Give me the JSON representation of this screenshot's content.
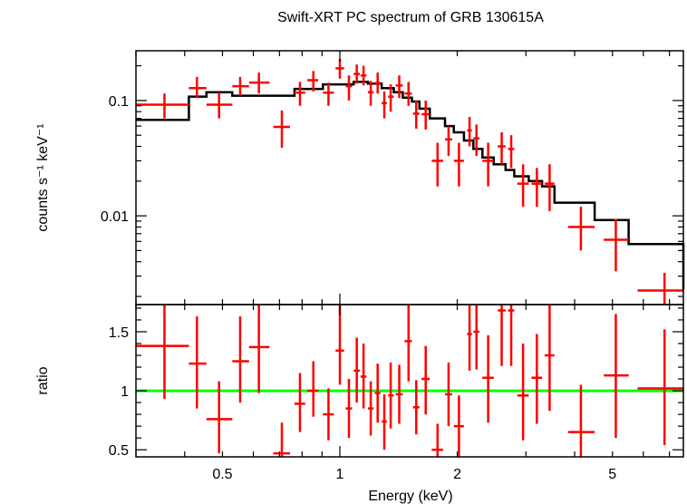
{
  "chart_data": [
    {
      "type": "scatter",
      "panel": "spectrum",
      "title": "Swift-XRT PC spectrum of GRB 130615A",
      "xlabel": "",
      "ylabel": "counts s⁻¹ keV⁻¹",
      "xscale": "log",
      "yscale": "log",
      "xlim": [
        0.3,
        7.6
      ],
      "ylim": [
        0.0017,
        0.27
      ],
      "y_ticks": [
        0.1,
        0.01
      ],
      "y_tick_labels": [
        "0.1",
        "0.01"
      ],
      "colors": {
        "data": "#ff0000",
        "model": "#000000"
      },
      "series": [
        {
          "kind": "data",
          "points": [
            {
              "x": 0.355,
              "xlo": 0.3,
              "xhi": 0.41,
              "y": 0.092,
              "ylo": 0.07,
              "yhi": 0.115
            },
            {
              "x": 0.43,
              "xlo": 0.41,
              "xhi": 0.455,
              "y": 0.128,
              "ylo": 0.105,
              "yhi": 0.16
            },
            {
              "x": 0.49,
              "xlo": 0.455,
              "xhi": 0.53,
              "y": 0.092,
              "ylo": 0.07,
              "yhi": 0.117
            },
            {
              "x": 0.555,
              "xlo": 0.53,
              "xhi": 0.585,
              "y": 0.133,
              "ylo": 0.11,
              "yhi": 0.16
            },
            {
              "x": 0.62,
              "xlo": 0.585,
              "xhi": 0.66,
              "y": 0.143,
              "ylo": 0.115,
              "yhi": 0.175
            },
            {
              "x": 0.71,
              "xlo": 0.675,
              "xhi": 0.745,
              "y": 0.059,
              "ylo": 0.039,
              "yhi": 0.082
            },
            {
              "x": 0.79,
              "xlo": 0.765,
              "xhi": 0.815,
              "y": 0.117,
              "ylo": 0.09,
              "yhi": 0.145
            },
            {
              "x": 0.855,
              "xlo": 0.825,
              "xhi": 0.88,
              "y": 0.15,
              "ylo": 0.12,
              "yhi": 0.18
            },
            {
              "x": 0.935,
              "xlo": 0.905,
              "xhi": 0.965,
              "y": 0.117,
              "ylo": 0.09,
              "yhi": 0.143
            },
            {
              "x": 1.0,
              "xlo": 0.975,
              "xhi": 1.025,
              "y": 0.19,
              "ylo": 0.155,
              "yhi": 0.23
            },
            {
              "x": 1.055,
              "xlo": 1.035,
              "xhi": 1.075,
              "y": 0.133,
              "ylo": 0.1,
              "yhi": 0.165
            },
            {
              "x": 1.105,
              "xlo": 1.085,
              "xhi": 1.125,
              "y": 0.17,
              "ylo": 0.14,
              "yhi": 0.205
            },
            {
              "x": 1.15,
              "xlo": 1.13,
              "xhi": 1.17,
              "y": 0.165,
              "ylo": 0.135,
              "yhi": 0.2
            },
            {
              "x": 1.2,
              "xlo": 1.18,
              "xhi": 1.22,
              "y": 0.118,
              "ylo": 0.09,
              "yhi": 0.148
            },
            {
              "x": 1.25,
              "xlo": 1.23,
              "xhi": 1.27,
              "y": 0.142,
              "ylo": 0.115,
              "yhi": 0.175
            },
            {
              "x": 1.3,
              "xlo": 1.28,
              "xhi": 1.32,
              "y": 0.095,
              "ylo": 0.07,
              "yhi": 0.12
            },
            {
              "x": 1.35,
              "xlo": 1.33,
              "xhi": 1.375,
              "y": 0.108,
              "ylo": 0.08,
              "yhi": 0.138
            },
            {
              "x": 1.42,
              "xlo": 1.39,
              "xhi": 1.45,
              "y": 0.135,
              "ylo": 0.105,
              "yhi": 0.165
            },
            {
              "x": 1.5,
              "xlo": 1.465,
              "xhi": 1.53,
              "y": 0.115,
              "ylo": 0.09,
              "yhi": 0.145
            },
            {
              "x": 1.57,
              "xlo": 1.54,
              "xhi": 1.6,
              "y": 0.077,
              "ylo": 0.057,
              "yhi": 0.1
            },
            {
              "x": 1.66,
              "xlo": 1.62,
              "xhi": 1.7,
              "y": 0.076,
              "ylo": 0.056,
              "yhi": 0.1
            },
            {
              "x": 1.78,
              "xlo": 1.72,
              "xhi": 1.84,
              "y": 0.03,
              "ylo": 0.018,
              "yhi": 0.043
            },
            {
              "x": 1.9,
              "xlo": 1.86,
              "xhi": 1.94,
              "y": 0.046,
              "ylo": 0.033,
              "yhi": 0.06
            },
            {
              "x": 2.02,
              "xlo": 1.96,
              "xhi": 2.08,
              "y": 0.03,
              "ylo": 0.018,
              "yhi": 0.043
            },
            {
              "x": 2.15,
              "xlo": 2.12,
              "xhi": 2.18,
              "y": 0.055,
              "ylo": 0.04,
              "yhi": 0.072
            },
            {
              "x": 2.24,
              "xlo": 2.2,
              "xhi": 2.28,
              "y": 0.047,
              "ylo": 0.033,
              "yhi": 0.062
            },
            {
              "x": 2.4,
              "xlo": 2.32,
              "xhi": 2.48,
              "y": 0.03,
              "ylo": 0.018,
              "yhi": 0.043
            },
            {
              "x": 2.6,
              "xlo": 2.54,
              "xhi": 2.66,
              "y": 0.04,
              "ylo": 0.028,
              "yhi": 0.053
            },
            {
              "x": 2.75,
              "xlo": 2.7,
              "xhi": 2.8,
              "y": 0.038,
              "ylo": 0.026,
              "yhi": 0.05
            },
            {
              "x": 2.95,
              "xlo": 2.85,
              "xhi": 3.05,
              "y": 0.019,
              "ylo": 0.012,
              "yhi": 0.028
            },
            {
              "x": 3.2,
              "xlo": 3.1,
              "xhi": 3.3,
              "y": 0.019,
              "ylo": 0.012,
              "yhi": 0.026
            },
            {
              "x": 3.45,
              "xlo": 3.35,
              "xhi": 3.55,
              "y": 0.019,
              "ylo": 0.011,
              "yhi": 0.028
            },
            {
              "x": 4.15,
              "xlo": 3.85,
              "xhi": 4.5,
              "y": 0.008,
              "ylo": 0.005,
              "yhi": 0.012
            },
            {
              "x": 5.1,
              "xlo": 4.75,
              "xhi": 5.5,
              "y": 0.0062,
              "ylo": 0.0033,
              "yhi": 0.0094
            },
            {
              "x": 6.8,
              "xlo": 5.8,
              "xhi": 7.6,
              "y": 0.00225,
              "ylo": 0.0017,
              "yhi": 0.0032
            }
          ]
        },
        {
          "kind": "model",
          "step_edges": [
            0.3,
            0.41,
            0.455,
            0.53,
            0.66,
            0.765,
            0.905,
            1.085,
            1.18,
            1.28,
            1.375,
            1.45,
            1.53,
            1.6,
            1.7,
            1.86,
            1.96,
            2.08,
            2.2,
            2.32,
            2.48,
            2.66,
            2.8,
            3.05,
            3.3,
            3.55,
            4.5,
            5.5,
            7.6
          ],
          "step_values": [
            0.068,
            0.108,
            0.118,
            0.11,
            0.11,
            0.126,
            0.138,
            0.145,
            0.14,
            0.128,
            0.118,
            0.106,
            0.098,
            0.085,
            0.07,
            0.06,
            0.053,
            0.045,
            0.038,
            0.032,
            0.028,
            0.025,
            0.022,
            0.02,
            0.018,
            0.013,
            0.0092,
            0.0057,
            0.0023
          ]
        }
      ]
    },
    {
      "type": "scatter",
      "panel": "ratio",
      "title": "",
      "xlabel": "Energy (keV)",
      "ylabel": "ratio",
      "xscale": "log",
      "yscale": "linear",
      "xlim": [
        0.3,
        7.6
      ],
      "ylim": [
        0.44,
        1.73
      ],
      "x_ticks": [
        0.5,
        1,
        2,
        5
      ],
      "x_tick_labels": [
        "0.5",
        "1",
        "2",
        "5"
      ],
      "y_ticks": [
        0.5,
        1,
        1.5
      ],
      "y_tick_labels": [
        "0.5",
        "1",
        "1.5"
      ],
      "reference_line": 1,
      "colors": {
        "data": "#ff0000",
        "reference": "#00ff00"
      },
      "series": [
        {
          "kind": "ratio",
          "points": [
            {
              "x": 0.355,
              "xlo": 0.3,
              "xhi": 0.41,
              "y": 1.38,
              "ylo": 0.93,
              "yhi": 1.73
            },
            {
              "x": 0.43,
              "xlo": 0.41,
              "xhi": 0.455,
              "y": 1.23,
              "ylo": 0.85,
              "yhi": 1.63
            },
            {
              "x": 0.49,
              "xlo": 0.455,
              "xhi": 0.53,
              "y": 0.76,
              "ylo": 0.47,
              "yhi": 1.08
            },
            {
              "x": 0.555,
              "xlo": 0.53,
              "xhi": 0.585,
              "y": 1.25,
              "ylo": 0.9,
              "yhi": 1.63
            },
            {
              "x": 0.62,
              "xlo": 0.585,
              "xhi": 0.66,
              "y": 1.37,
              "ylo": 0.98,
              "yhi": 1.73
            },
            {
              "x": 0.71,
              "xlo": 0.675,
              "xhi": 0.745,
              "y": 0.47,
              "ylo": 0.44,
              "yhi": 0.73
            },
            {
              "x": 0.79,
              "xlo": 0.765,
              "xhi": 0.815,
              "y": 0.89,
              "ylo": 0.65,
              "yhi": 1.15
            },
            {
              "x": 0.855,
              "xlo": 0.825,
              "xhi": 0.88,
              "y": 1.0,
              "ylo": 0.78,
              "yhi": 1.25
            },
            {
              "x": 0.935,
              "xlo": 0.905,
              "xhi": 0.965,
              "y": 0.8,
              "ylo": 0.58,
              "yhi": 1.02
            },
            {
              "x": 1.0,
              "xlo": 0.975,
              "xhi": 1.025,
              "y": 1.34,
              "ylo": 1.05,
              "yhi": 1.73
            },
            {
              "x": 1.055,
              "xlo": 1.035,
              "xhi": 1.075,
              "y": 0.85,
              "ylo": 0.6,
              "yhi": 1.1
            },
            {
              "x": 1.105,
              "xlo": 1.085,
              "xhi": 1.125,
              "y": 1.17,
              "ylo": 0.9,
              "yhi": 1.45
            },
            {
              "x": 1.15,
              "xlo": 1.13,
              "xhi": 1.17,
              "y": 1.12,
              "ylo": 0.85,
              "yhi": 1.4
            },
            {
              "x": 1.2,
              "xlo": 1.18,
              "xhi": 1.22,
              "y": 0.85,
              "ylo": 0.62,
              "yhi": 1.08
            },
            {
              "x": 1.25,
              "xlo": 1.23,
              "xhi": 1.27,
              "y": 0.98,
              "ylo": 0.73,
              "yhi": 1.23
            },
            {
              "x": 1.3,
              "xlo": 1.28,
              "xhi": 1.32,
              "y": 0.74,
              "ylo": 0.5,
              "yhi": 0.97
            },
            {
              "x": 1.35,
              "xlo": 1.33,
              "xhi": 1.375,
              "y": 0.96,
              "ylo": 0.68,
              "yhi": 1.24
            },
            {
              "x": 1.42,
              "xlo": 1.39,
              "xhi": 1.45,
              "y": 0.97,
              "ylo": 0.72,
              "yhi": 1.22
            },
            {
              "x": 1.5,
              "xlo": 1.465,
              "xhi": 1.53,
              "y": 1.42,
              "ylo": 1.08,
              "yhi": 1.73
            },
            {
              "x": 1.57,
              "xlo": 1.54,
              "xhi": 1.6,
              "y": 0.86,
              "ylo": 0.63,
              "yhi": 1.09
            },
            {
              "x": 1.66,
              "xlo": 1.62,
              "xhi": 1.7,
              "y": 1.1,
              "ylo": 0.8,
              "yhi": 1.38
            },
            {
              "x": 1.78,
              "xlo": 1.72,
              "xhi": 1.84,
              "y": 0.5,
              "ylo": 0.44,
              "yhi": 0.72
            },
            {
              "x": 1.9,
              "xlo": 1.86,
              "xhi": 1.94,
              "y": 0.97,
              "ylo": 0.7,
              "yhi": 1.24
            },
            {
              "x": 2.02,
              "xlo": 1.96,
              "xhi": 2.08,
              "y": 0.7,
              "ylo": 0.44,
              "yhi": 0.96
            },
            {
              "x": 2.15,
              "xlo": 2.12,
              "xhi": 2.18,
              "y": 1.48,
              "ylo": 1.17,
              "yhi": 1.73
            },
            {
              "x": 2.24,
              "xlo": 2.2,
              "xhi": 2.28,
              "y": 1.5,
              "ylo": 1.18,
              "yhi": 1.73
            },
            {
              "x": 2.4,
              "xlo": 2.32,
              "xhi": 2.48,
              "y": 1.11,
              "ylo": 0.73,
              "yhi": 1.47
            },
            {
              "x": 2.6,
              "xlo": 2.54,
              "xhi": 2.66,
              "y": 1.68,
              "ylo": 1.21,
              "yhi": 1.73
            },
            {
              "x": 2.75,
              "xlo": 2.7,
              "xhi": 2.8,
              "y": 1.68,
              "ylo": 1.21,
              "yhi": 1.73
            },
            {
              "x": 2.95,
              "xlo": 2.85,
              "xhi": 3.05,
              "y": 0.96,
              "ylo": 0.58,
              "yhi": 1.4
            },
            {
              "x": 3.2,
              "xlo": 3.1,
              "xhi": 3.3,
              "y": 1.11,
              "ylo": 0.72,
              "yhi": 1.48
            },
            {
              "x": 3.45,
              "xlo": 3.35,
              "xhi": 3.55,
              "y": 1.3,
              "ylo": 0.83,
              "yhi": 1.73
            },
            {
              "x": 4.15,
              "xlo": 3.85,
              "xhi": 4.5,
              "y": 0.65,
              "ylo": 0.44,
              "yhi": 1.05
            },
            {
              "x": 5.1,
              "xlo": 4.75,
              "xhi": 5.5,
              "y": 1.13,
              "ylo": 0.6,
              "yhi": 1.65
            },
            {
              "x": 6.8,
              "xlo": 5.8,
              "xhi": 7.6,
              "y": 1.02,
              "ylo": 0.54,
              "yhi": 1.52
            }
          ]
        }
      ]
    }
  ]
}
